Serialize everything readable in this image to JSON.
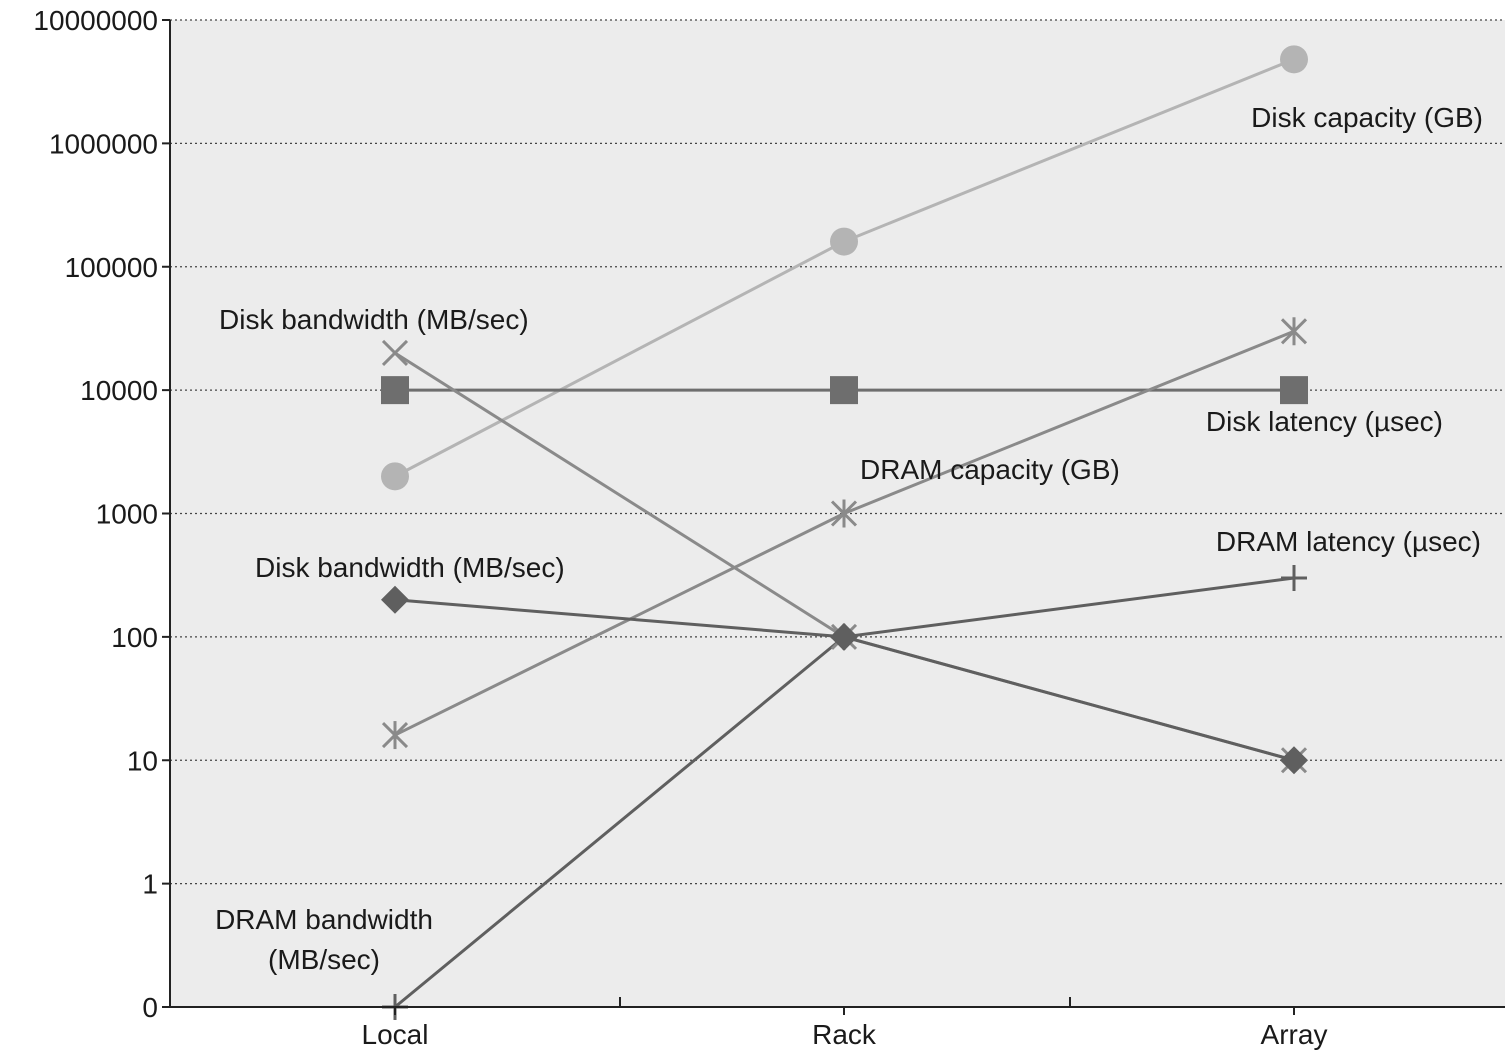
{
  "chart_data": {
    "type": "line",
    "y_scale": "log",
    "grid": true,
    "categories": [
      "Local",
      "Rack",
      "Array"
    ],
    "y_ticks": [
      "10000000",
      "1000000",
      "100000",
      "10000",
      "1000",
      "100",
      "10",
      "1",
      "0"
    ],
    "series": [
      {
        "name": "Disk capacity (GB)",
        "values": [
          2000,
          160000,
          4800000
        ],
        "marker": "circle",
        "color": "#b4b4b4"
      },
      {
        "name": "Disk latency (µsec)",
        "values": [
          10000,
          10000,
          10000
        ],
        "marker": "square",
        "color": "#6e6e6e"
      },
      {
        "name": "DRAM capacity (GB)",
        "values": [
          16,
          1000,
          30000
        ],
        "marker": "asterisk",
        "color": "#8a8a8a"
      },
      {
        "name": "Disk bandwidth (MB/sec)",
        "values": [
          20000,
          100,
          10
        ],
        "marker": "x",
        "color": "#8a8a8a"
      },
      {
        "name": "DRAM latency (µsec)",
        "values": [
          0.1,
          100,
          300
        ],
        "marker": "plus",
        "color": "#5f5f5f"
      },
      {
        "name": "Disk bandwidth (MB/sec)",
        "values": [
          200,
          100,
          10
        ],
        "marker": "diamond",
        "color": "#5f5f5f"
      }
    ],
    "annotations": [
      "Disk capacity (GB)",
      "Disk bandwidth (MB/sec)",
      "Disk latency (µsec)",
      "DRAM capacity (GB)",
      "DRAM latency (µsec)",
      "Disk bandwidth (MB/sec)",
      "DRAM bandwidth",
      "(MB/sec)"
    ]
  }
}
